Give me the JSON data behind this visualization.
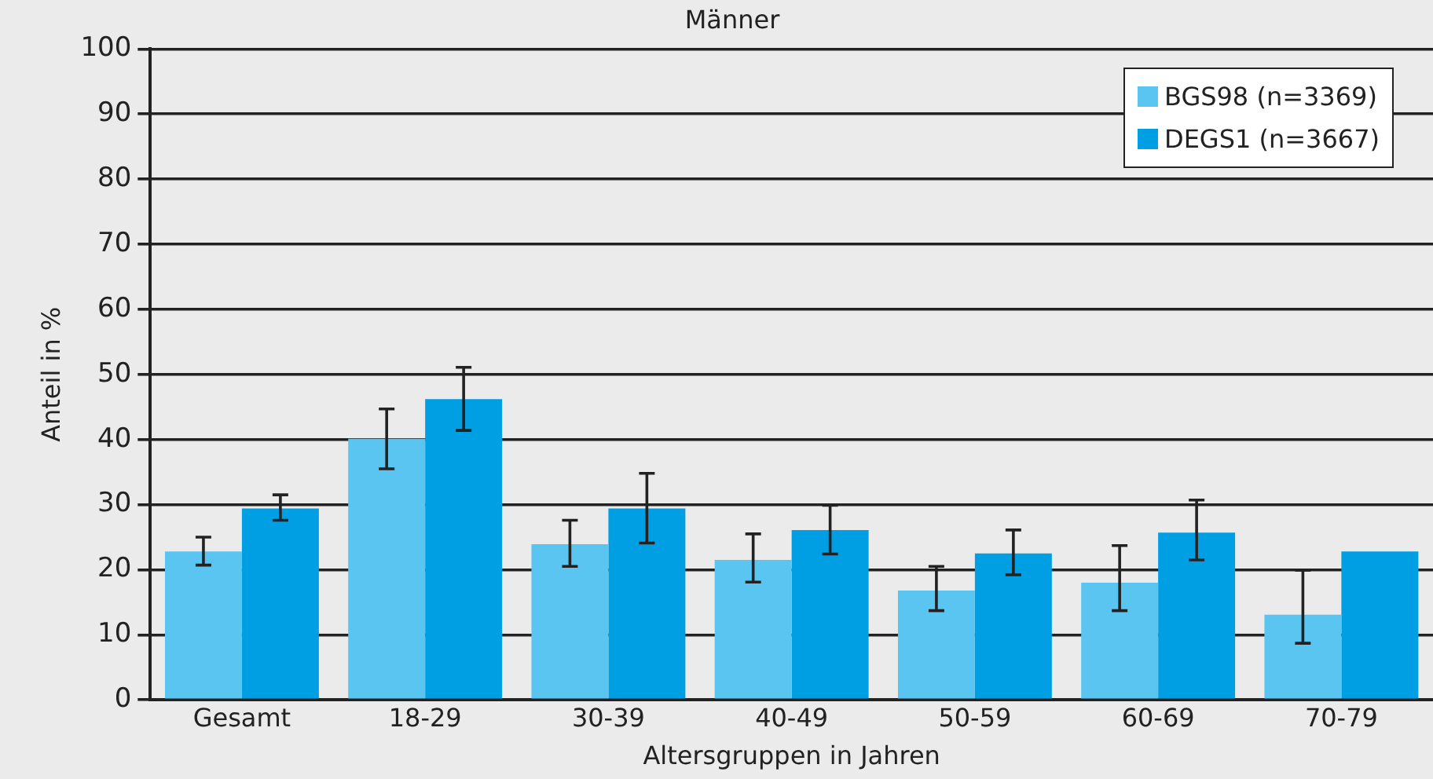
{
  "chart_data": {
    "type": "bar",
    "title": "Männer",
    "xlabel": "Altersgruppen in Jahren",
    "ylabel": "Anteil in %",
    "categories": [
      "Gesamt",
      "18-29",
      "30-39",
      "40-49",
      "50-59",
      "60-69",
      "70-79"
    ],
    "series": [
      {
        "name": "BGS98 (n=3369)",
        "color": "#5bc5f2",
        "values": [
          22.8,
          40.1,
          23.9,
          21.5,
          16.8,
          18.0,
          13.1
        ],
        "errors": [
          [
            20.7,
            25.0
          ],
          [
            35.5,
            44.7
          ],
          [
            20.5,
            27.6
          ],
          [
            18.1,
            25.5
          ],
          [
            13.7,
            20.5
          ],
          [
            13.7,
            23.7
          ],
          [
            8.7,
            19.9
          ]
        ]
      },
      {
        "name": "DEGS1 (n=3667)",
        "color": "#009fe3",
        "values": [
          29.4,
          46.2,
          29.4,
          26.1,
          22.5,
          25.7,
          22.8
        ],
        "errors": [
          [
            27.6,
            31.5
          ],
          [
            41.4,
            51.1
          ],
          [
            24.1,
            34.8
          ],
          [
            22.4,
            29.9
          ],
          [
            19.2,
            26.1
          ],
          [
            21.5,
            30.7
          ],
          null
        ]
      }
    ],
    "ylim": [
      0,
      100
    ],
    "yticks": [
      0,
      10,
      20,
      30,
      40,
      50,
      60,
      70,
      80,
      90,
      100
    ],
    "grid": "y",
    "legend": "top right"
  }
}
